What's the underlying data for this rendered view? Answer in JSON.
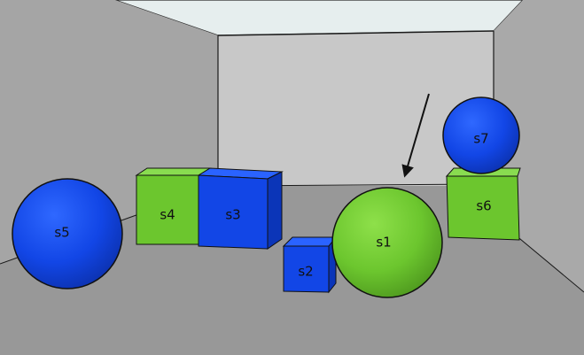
{
  "colors": {
    "green": "#6cc62e",
    "blue": "#1246e6",
    "floor": "#999999",
    "back_wall": "#c7c7c7",
    "left_wall": "#a5a5a5",
    "right_wall": "#a9a9a9",
    "ceiling": "#e6eeee",
    "outline": "#111111"
  },
  "objects": [
    {
      "id": "s1",
      "shape": "sphere",
      "color": "green",
      "label": "s1"
    },
    {
      "id": "s2",
      "shape": "cube",
      "color": "blue",
      "label": "s2"
    },
    {
      "id": "s3",
      "shape": "cube",
      "color": "blue",
      "label": "s3"
    },
    {
      "id": "s4",
      "shape": "cube",
      "color": "green",
      "label": "s4"
    },
    {
      "id": "s5",
      "shape": "sphere",
      "color": "blue",
      "label": "s5"
    },
    {
      "id": "s6",
      "shape": "cube",
      "color": "green",
      "label": "s6"
    },
    {
      "id": "s7",
      "shape": "sphere",
      "color": "blue",
      "label": "s7"
    }
  ],
  "pointer": {
    "target": "s1",
    "icon": "arrow-icon"
  }
}
